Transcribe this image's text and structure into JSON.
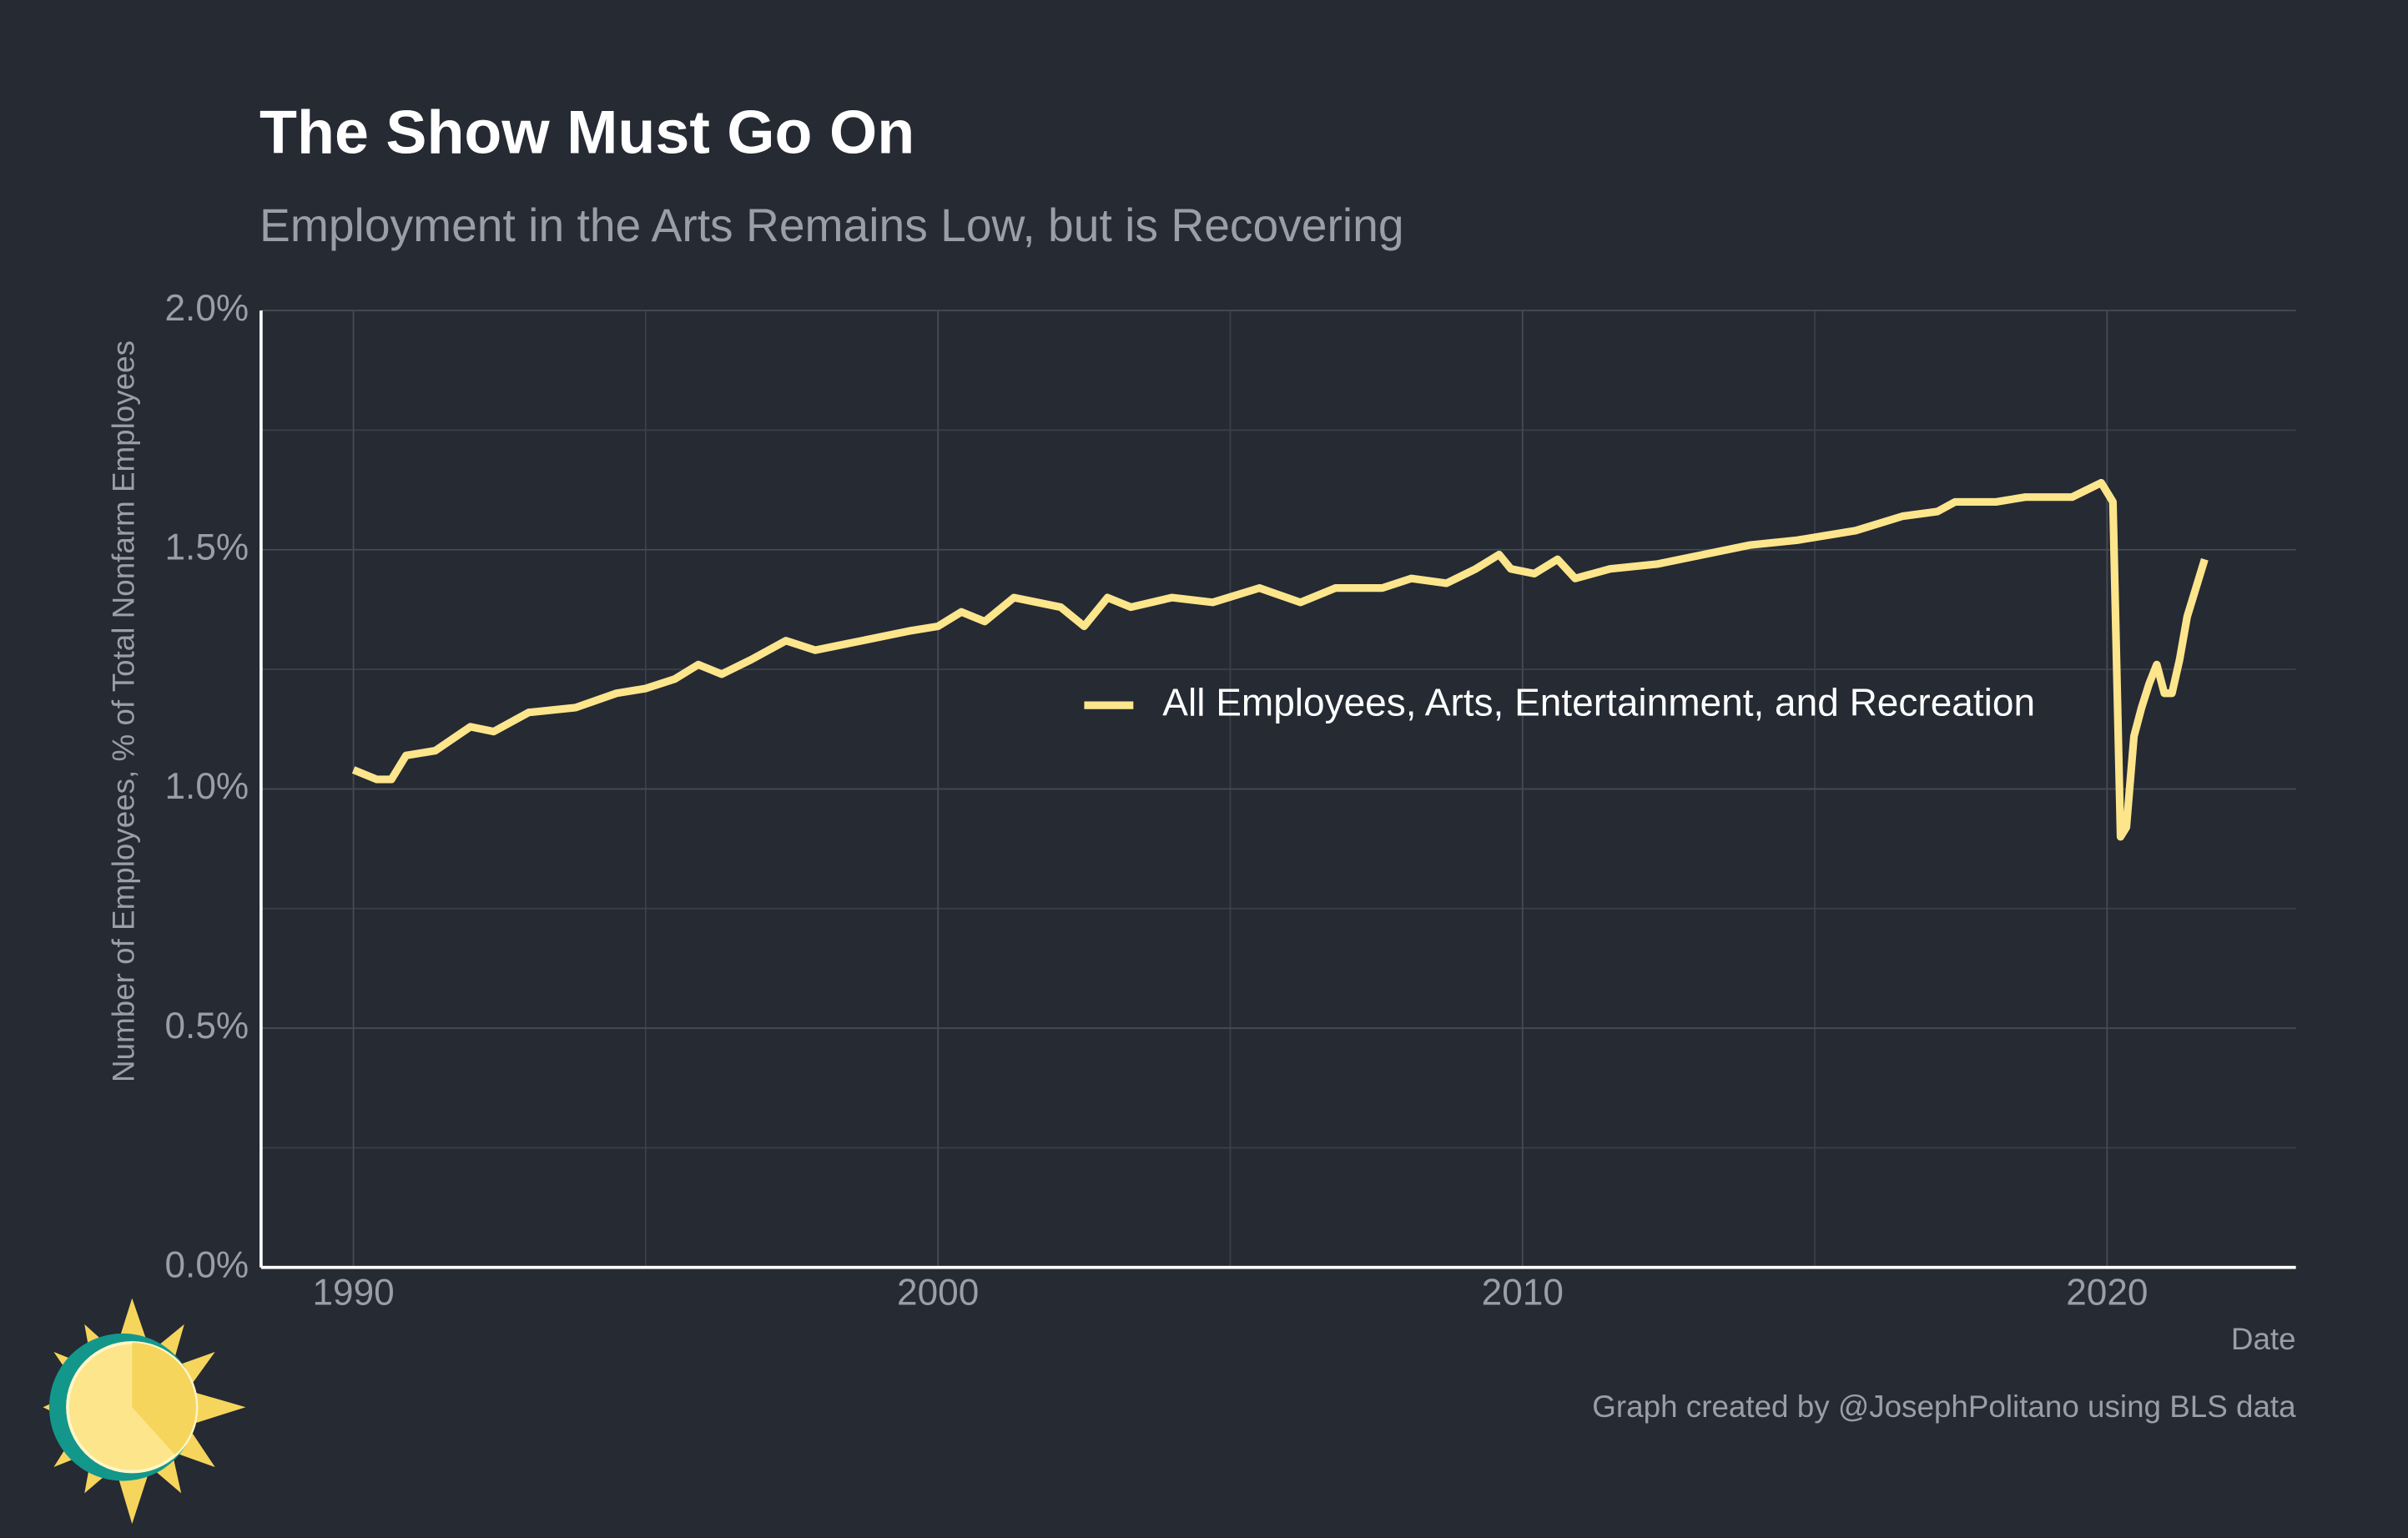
{
  "chart_data": {
    "type": "line",
    "title": "The Show Must Go On",
    "subtitle": "Employment in the Arts Remains Low, but is Recovering",
    "y_label": "Number of Employees, % of Total Nonfarm Employees",
    "x_label": "Date",
    "caption": "Graph created by @JosephPolitano using BLS data",
    "x": [
      1990.0,
      1990.4,
      1990.65,
      1990.9,
      1991.4,
      1992.0,
      1992.4,
      1993.0,
      1993.8,
      1994.5,
      1995.0,
      1995.5,
      1995.9,
      1996.3,
      1996.8,
      1997.4,
      1997.9,
      1998.7,
      1999.5,
      2000.0,
      2000.4,
      2000.8,
      2001.3,
      2002.1,
      2002.5,
      2002.9,
      2003.3,
      2004.0,
      2004.7,
      2005.5,
      2006.2,
      2006.8,
      2007.6,
      2008.1,
      2008.7,
      2009.2,
      2009.6,
      2009.8,
      2010.2,
      2010.6,
      2010.9,
      2011.5,
      2012.3,
      2013.1,
      2013.9,
      2014.7,
      2015.2,
      2015.7,
      2016.5,
      2017.1,
      2017.4,
      2018.1,
      2018.6,
      2019.4,
      2019.9,
      2020.1,
      2020.23,
      2020.33,
      2020.46,
      2020.59,
      2020.72,
      2020.85,
      2020.98,
      2021.11,
      2021.24,
      2021.37,
      2021.67
    ],
    "series": [
      {
        "name": "All Employees, Arts, Entertainment, and Recreation",
        "color": "#fde58c",
        "values": [
          1.04,
          1.02,
          1.02,
          1.07,
          1.08,
          1.13,
          1.12,
          1.16,
          1.17,
          1.2,
          1.21,
          1.23,
          1.26,
          1.24,
          1.27,
          1.31,
          1.29,
          1.31,
          1.33,
          1.34,
          1.37,
          1.35,
          1.4,
          1.38,
          1.34,
          1.4,
          1.38,
          1.4,
          1.39,
          1.42,
          1.39,
          1.42,
          1.42,
          1.44,
          1.43,
          1.46,
          1.49,
          1.46,
          1.45,
          1.48,
          1.44,
          1.46,
          1.47,
          1.49,
          1.51,
          1.52,
          1.53,
          1.54,
          1.57,
          1.58,
          1.6,
          1.6,
          1.61,
          1.61,
          1.64,
          1.6,
          0.9,
          0.92,
          1.11,
          1.17,
          1.22,
          1.26,
          1.2,
          1.2,
          1.27,
          1.36,
          1.48
        ]
      }
    ],
    "xlim": [
      1988.42,
      2023.23
    ],
    "ylim": [
      0,
      2
    ],
    "xticks": [
      1990,
      2000,
      2010,
      2020
    ],
    "yticks": [
      {
        "value": 0,
        "label": "0.0%"
      },
      {
        "value": 0.5,
        "label": "0.5%"
      },
      {
        "value": 1,
        "label": "1.0%"
      },
      {
        "value": 1.5,
        "label": "1.5%"
      },
      {
        "value": 2,
        "label": "2.0%"
      }
    ],
    "grid": true
  }
}
